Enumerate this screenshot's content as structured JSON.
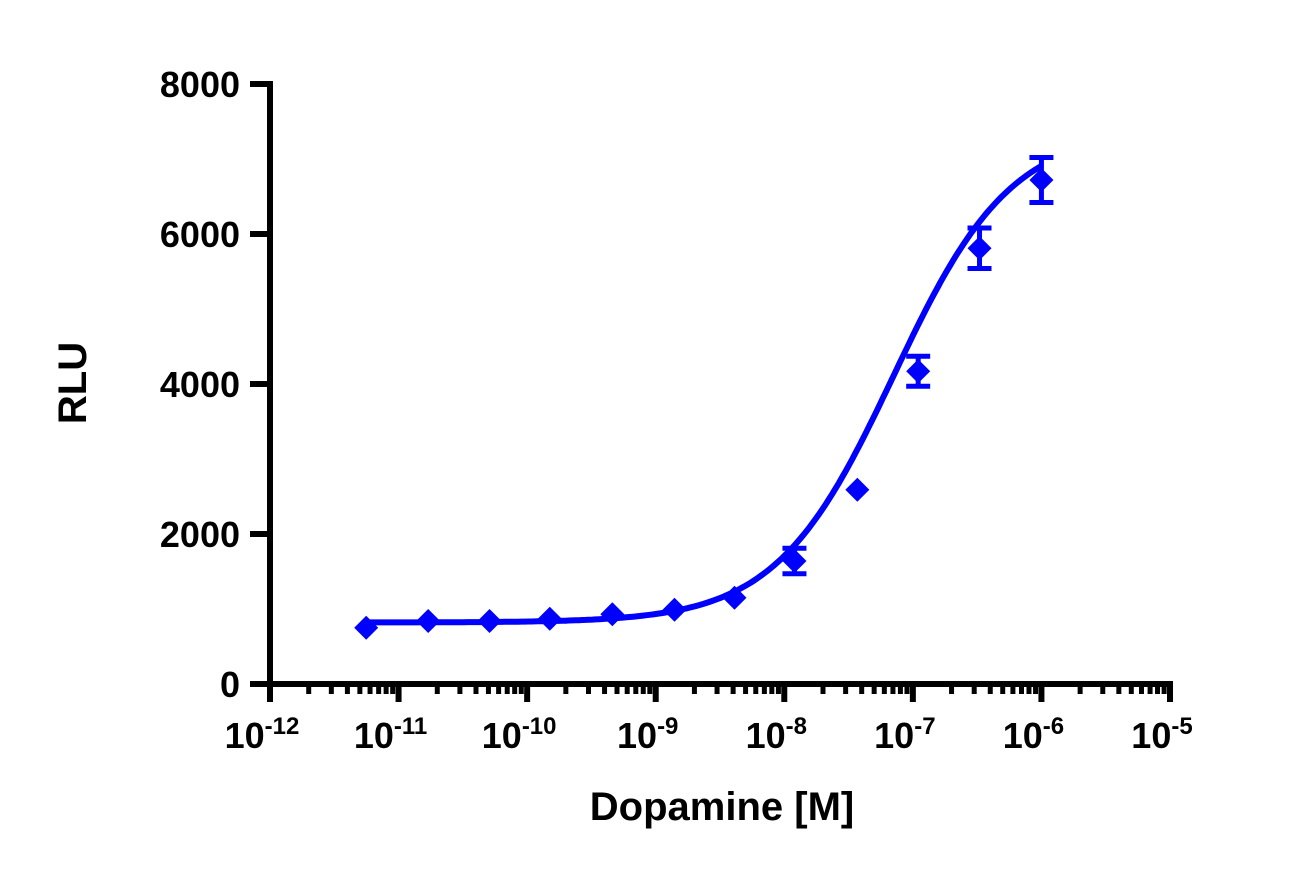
{
  "chart_data": {
    "type": "scatter",
    "title": "",
    "xlabel": "Dopamine [M]",
    "ylabel": "RLU",
    "xscale": "log",
    "xlim": [
      1e-12,
      1e-05
    ],
    "ylim": [
      0,
      8000
    ],
    "grid": false,
    "legend": null,
    "x_tick_labels": [
      {
        "base": "10",
        "exp": "-12"
      },
      {
        "base": "10",
        "exp": "-11"
      },
      {
        "base": "10",
        "exp": "-10"
      },
      {
        "base": "10",
        "exp": "-9"
      },
      {
        "base": "10",
        "exp": "-8"
      },
      {
        "base": "10",
        "exp": "-7"
      },
      {
        "base": "10",
        "exp": "-6"
      },
      {
        "base": "10",
        "exp": "-5"
      }
    ],
    "y_ticks": [
      0,
      2000,
      4000,
      6000,
      8000
    ],
    "series": [
      {
        "name": "Dopamine",
        "color": "#0000ff",
        "marker": "diamond",
        "fit": "sigmoidal dose-response",
        "x": [
          5.6e-12,
          1.7e-11,
          5.1e-11,
          1.5e-10,
          4.6e-10,
          1.4e-09,
          4.1e-09,
          1.2e-08,
          3.7e-08,
          1.1e-07,
          3.3e-07,
          1e-06
        ],
        "y": [
          750,
          840,
          840,
          870,
          930,
          990,
          1150,
          1640,
          2590,
          4170,
          5810,
          6720
        ],
        "error": [
          0,
          0,
          0,
          0,
          0,
          0,
          0,
          170,
          0,
          200,
          270,
          300
        ]
      }
    ]
  }
}
